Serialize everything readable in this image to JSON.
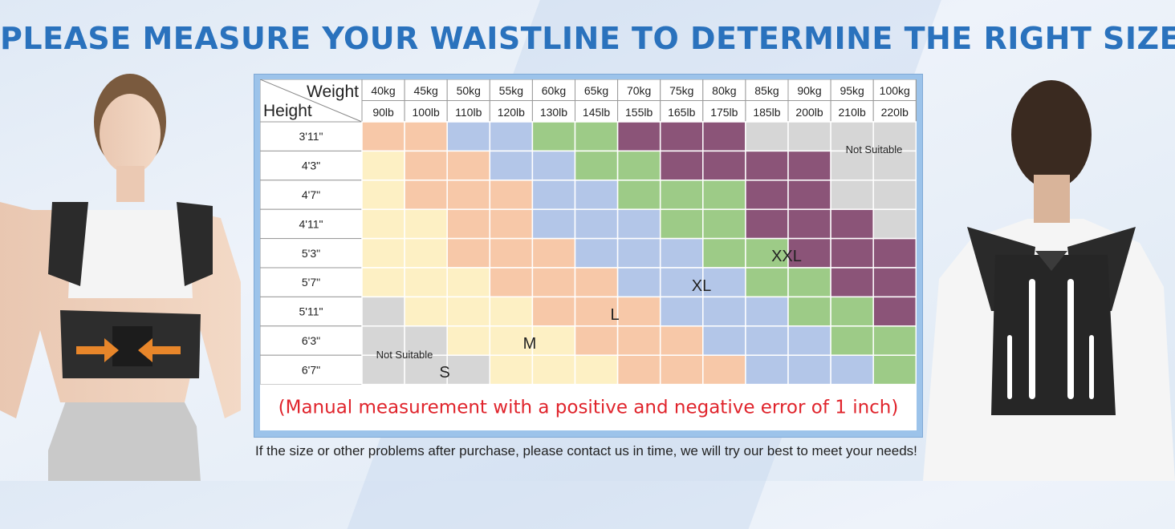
{
  "headline": "PLEASE MEASURE YOUR WAISTLINE TO DETERMINE THE RIGHT SIZE",
  "chart": {
    "corner_weight": "Weight",
    "corner_height": "Height",
    "weights_kg": [
      "40kg",
      "45kg",
      "50kg",
      "55kg",
      "60kg",
      "65kg",
      "70kg",
      "75kg",
      "80kg",
      "85kg",
      "90kg",
      "95kg",
      "100kg"
    ],
    "weights_lb": [
      "90lb",
      "100lb",
      "110lb",
      "120lb",
      "130lb",
      "145lb",
      "155lb",
      "165lb",
      "175lb",
      "185lb",
      "200lb",
      "210lb",
      "220lb"
    ],
    "heights": [
      "3'11\"",
      "4'3\"",
      "4'7\"",
      "4'11\"",
      "5'3\"",
      "5'7\"",
      "5'11\"",
      "6'3\"",
      "6'7\""
    ],
    "size_labels": {
      "S": "S",
      "M": "M",
      "L": "L",
      "XL": "XL",
      "XXL": "XXL"
    },
    "not_suitable_top": "Not Suitable",
    "not_suitable_bottom": "Not Suitable",
    "footer": "(Manual measurement with a positive and negative error of 1 inch)",
    "colors": {
      "S": "#fdf0c4",
      "M": "#f7c8a8",
      "L": "#b3c6e8",
      "XL": "#9dcb87",
      "XXL": "#8b5478",
      "NA": "#d6d6d6"
    },
    "grid": [
      [
        "M",
        "M",
        "L",
        "L",
        "XL",
        "XL",
        "XXL",
        "XXL",
        "XXL",
        "NA",
        "NA",
        "NA",
        "NA"
      ],
      [
        "S",
        "M",
        "M",
        "L",
        "L",
        "XL",
        "XL",
        "XXL",
        "XXL",
        "XXL",
        "XXL",
        "NA",
        "NA"
      ],
      [
        "S",
        "M",
        "M",
        "M",
        "L",
        "L",
        "XL",
        "XL",
        "XL",
        "XXL",
        "XXL",
        "NA",
        "NA"
      ],
      [
        "S",
        "S",
        "M",
        "M",
        "L",
        "L",
        "L",
        "XL",
        "XL",
        "XXL",
        "XXL",
        "XXL",
        "NA"
      ],
      [
        "S",
        "S",
        "M",
        "M",
        "M",
        "L",
        "L",
        "L",
        "XL",
        "XL",
        "XXL",
        "XXL",
        "XXL"
      ],
      [
        "S",
        "S",
        "S",
        "M",
        "M",
        "M",
        "L",
        "L",
        "L",
        "XL",
        "XL",
        "XXL",
        "XXL"
      ],
      [
        "NA",
        "S",
        "S",
        "S",
        "M",
        "M",
        "M",
        "L",
        "L",
        "L",
        "XL",
        "XL",
        "XXL"
      ],
      [
        "NA",
        "NA",
        "S",
        "S",
        "S",
        "M",
        "M",
        "M",
        "L",
        "L",
        "L",
        "XL",
        "XL"
      ],
      [
        "NA",
        "NA",
        "NA",
        "S",
        "S",
        "S",
        "M",
        "M",
        "M",
        "L",
        "L",
        "L",
        "XL"
      ]
    ]
  },
  "note": "If the size or other problems after purchase, please contact us in time, we will try our best to meet your needs!"
}
